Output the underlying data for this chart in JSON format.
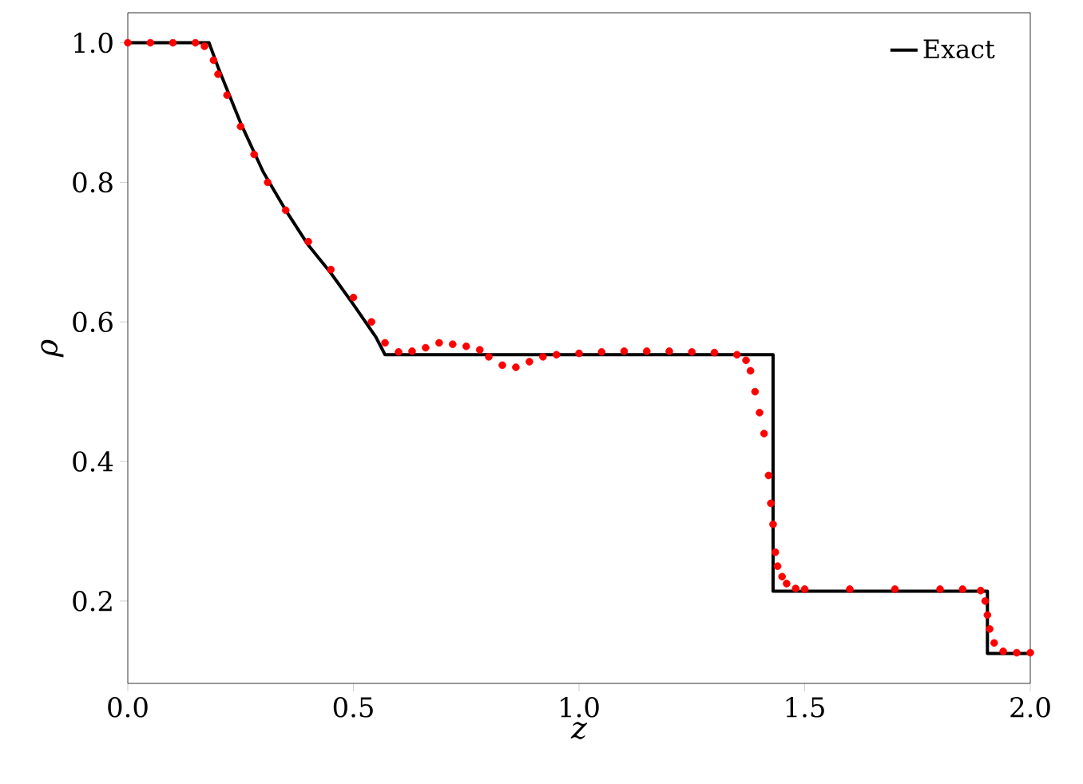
{
  "chart_data": {
    "type": "line",
    "xlabel": "z",
    "ylabel": "ρ",
    "xlim": [
      0,
      2
    ],
    "ylim": [
      0.082,
      1.043
    ],
    "xticks": [
      {
        "value": 0,
        "label": "0.0"
      },
      {
        "value": 0.5,
        "label": "0.5"
      },
      {
        "value": 1,
        "label": "1.0"
      },
      {
        "value": 1.5,
        "label": "1.5"
      },
      {
        "value": 2,
        "label": "2.0"
      }
    ],
    "yticks": [
      {
        "value": 0.2,
        "label": "0.2"
      },
      {
        "value": 0.4,
        "label": "0.4"
      },
      {
        "value": 0.6,
        "label": "0.6"
      },
      {
        "value": 0.8,
        "label": "0.8"
      },
      {
        "value": 1,
        "label": "1.0"
      }
    ],
    "grid": false,
    "legend": "top right",
    "series": [
      {
        "name": "Exact",
        "color": "#000000",
        "marker": "none",
        "line_style": "solid",
        "x": [
          0,
          0.18,
          0.2,
          0.25,
          0.3,
          0.35,
          0.4,
          0.45,
          0.5,
          0.55,
          0.57,
          1.43,
          1.43,
          1.905,
          1.905,
          2.0
        ],
        "values": [
          1.0,
          1.0,
          0.965,
          0.885,
          0.815,
          0.76,
          0.71,
          0.67,
          0.625,
          0.578,
          0.553,
          0.553,
          0.214,
          0.214,
          0.125,
          0.125
        ]
      },
      {
        "type": "scatter",
        "color": "#ff0000",
        "marker": "circle",
        "x": [
          0.0,
          0.05,
          0.1,
          0.15,
          0.17,
          0.19,
          0.2,
          0.22,
          0.25,
          0.28,
          0.31,
          0.35,
          0.4,
          0.45,
          0.5,
          0.54,
          0.57,
          0.6,
          0.63,
          0.66,
          0.69,
          0.72,
          0.75,
          0.78,
          0.8,
          0.83,
          0.86,
          0.89,
          0.92,
          0.95,
          1.0,
          1.05,
          1.1,
          1.15,
          1.2,
          1.25,
          1.3,
          1.35,
          1.37,
          1.38,
          1.39,
          1.4,
          1.41,
          1.42,
          1.425,
          1.43,
          1.435,
          1.44,
          1.45,
          1.46,
          1.48,
          1.5,
          1.6,
          1.7,
          1.8,
          1.85,
          1.89,
          1.9,
          1.905,
          1.91,
          1.92,
          1.94,
          1.97,
          2.0
        ],
        "values": [
          1.0,
          1.0,
          1.0,
          1.0,
          0.995,
          0.975,
          0.955,
          0.925,
          0.88,
          0.84,
          0.8,
          0.76,
          0.715,
          0.675,
          0.635,
          0.6,
          0.57,
          0.557,
          0.558,
          0.563,
          0.57,
          0.568,
          0.565,
          0.56,
          0.55,
          0.538,
          0.535,
          0.543,
          0.55,
          0.553,
          0.555,
          0.557,
          0.558,
          0.558,
          0.558,
          0.557,
          0.556,
          0.553,
          0.545,
          0.53,
          0.5,
          0.47,
          0.44,
          0.38,
          0.34,
          0.31,
          0.27,
          0.25,
          0.235,
          0.225,
          0.218,
          0.217,
          0.217,
          0.217,
          0.217,
          0.217,
          0.215,
          0.2,
          0.18,
          0.16,
          0.14,
          0.128,
          0.126,
          0.126
        ]
      }
    ]
  }
}
